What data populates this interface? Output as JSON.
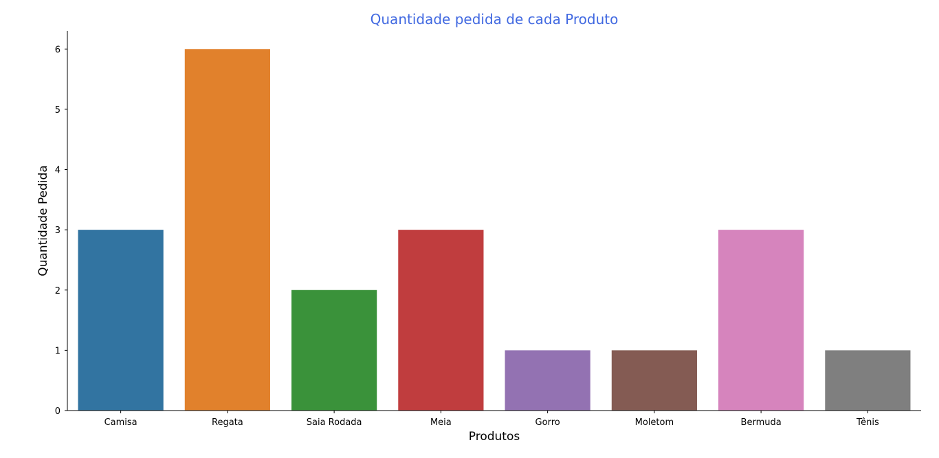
{
  "chart_data": {
    "type": "bar",
    "title": "Quantidade pedida de cada Produto",
    "title_color": "#4169e1",
    "xlabel": "Produtos",
    "ylabel": "Quantidade Pedida",
    "categories": [
      "Camisa",
      "Regata",
      "Saia Rodada",
      "Meia",
      "Gorro",
      "Moletom",
      "Bermuda",
      "Tênis"
    ],
    "values": [
      3,
      6,
      2,
      3,
      1,
      1,
      3,
      1
    ],
    "colors": [
      "#3274a1",
      "#e1812c",
      "#3a923a",
      "#c03d3e",
      "#9372b2",
      "#845b53",
      "#d684bd",
      "#7f7f7f"
    ],
    "ylim": [
      0,
      6.3
    ],
    "yticks": [
      0,
      1,
      2,
      3,
      4,
      5,
      6
    ],
    "grid": false,
    "legend": "none"
  }
}
